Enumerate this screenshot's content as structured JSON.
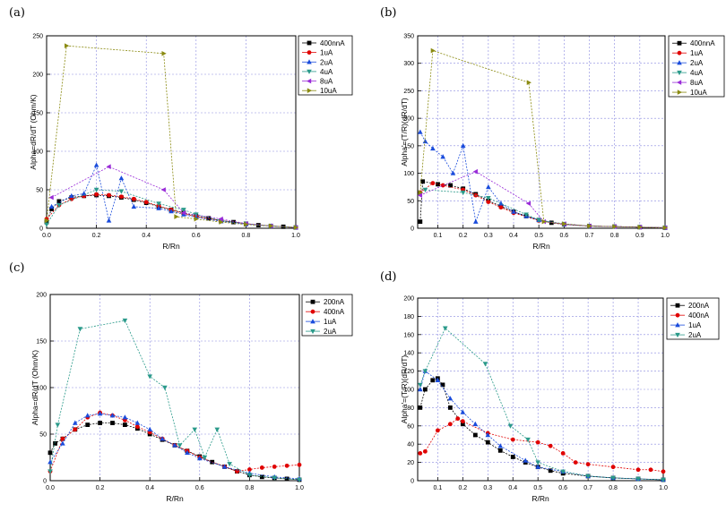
{
  "chart_data": [
    {
      "type": "scatter",
      "panel_label": "(a)",
      "xlabel": "R/Rn",
      "ylabel": "Alpha=dR/dT (Ohm/K)",
      "xlim": [
        0.0,
        1.0
      ],
      "ylim": [
        0,
        250
      ],
      "xticks": [
        0.0,
        0.2,
        0.4,
        0.6,
        0.8,
        1.0
      ],
      "xtick_labels": [
        "0.0",
        "0.2",
        "0.4",
        "0.6",
        "0.8",
        "1.0"
      ],
      "yticks": [
        0,
        50,
        100,
        150,
        200,
        250
      ],
      "ytick_labels": [
        "0",
        "50",
        "100",
        "150",
        "200",
        "250"
      ],
      "legend_position": "top-right",
      "series": [
        {
          "name": "400nnA",
          "color": "#000000",
          "marker": "square",
          "x": [
            0.0,
            0.02,
            0.05,
            0.1,
            0.15,
            0.2,
            0.25,
            0.3,
            0.35,
            0.4,
            0.45,
            0.5,
            0.55,
            0.6,
            0.65,
            0.7,
            0.75,
            0.8,
            0.85,
            0.9,
            0.95,
            1.0
          ],
          "y": [
            8,
            25,
            35,
            40,
            42,
            43,
            42,
            40,
            37,
            33,
            28,
            24,
            20,
            16,
            13,
            10,
            8,
            6,
            4,
            3,
            2,
            1
          ]
        },
        {
          "name": "1uA",
          "color": "#e00000",
          "marker": "circle",
          "x": [
            0.0,
            0.05,
            0.1,
            0.15,
            0.2,
            0.25,
            0.3,
            0.35,
            0.4,
            0.45,
            0.5,
            0.55,
            0.6,
            0.7,
            0.8,
            0.9,
            1.0
          ],
          "y": [
            12,
            30,
            38,
            42,
            44,
            43,
            41,
            38,
            34,
            29,
            24,
            19,
            15,
            10,
            6,
            3,
            1
          ]
        },
        {
          "name": "2uA",
          "color": "#1a4cdc",
          "marker": "triangle-up",
          "x": [
            0.02,
            0.1,
            0.15,
            0.2,
            0.25,
            0.3,
            0.35,
            0.45,
            0.5,
            0.55,
            0.6,
            0.7,
            0.8,
            0.9,
            1.0
          ],
          "y": [
            28,
            42,
            45,
            82,
            10,
            65,
            28,
            26,
            22,
            18,
            14,
            9,
            5,
            3,
            1
          ]
        },
        {
          "name": "4uA",
          "color": "#2a9a8a",
          "marker": "triangle-down",
          "x": [
            0.0,
            0.05,
            0.2,
            0.3,
            0.45,
            0.55,
            0.6,
            0.7,
            0.8,
            0.9,
            1.0
          ],
          "y": [
            5,
            30,
            50,
            48,
            32,
            24,
            18,
            10,
            6,
            3,
            1
          ]
        },
        {
          "name": "8uA",
          "color": "#9a2cd8",
          "marker": "triangle-left",
          "x": [
            0.02,
            0.25,
            0.47,
            0.55,
            0.7,
            0.8,
            0.9,
            1.0
          ],
          "y": [
            40,
            80,
            50,
            20,
            12,
            6,
            3,
            1
          ]
        },
        {
          "name": "10uA",
          "color": "#8a8a10",
          "marker": "triangle-right",
          "x": [
            0.0,
            0.08,
            0.47,
            0.52,
            0.6,
            0.7,
            0.8,
            0.9,
            1.0
          ],
          "y": [
            10,
            237,
            227,
            15,
            12,
            8,
            5,
            3,
            1
          ]
        }
      ]
    },
    {
      "type": "scatter",
      "panel_label": "(b)",
      "xlabel": "R/Rn",
      "ylabel": "Alpha'=(T/R)(dR/dT)",
      "xlim": [
        0.02,
        1.0
      ],
      "ylim": [
        0,
        350
      ],
      "xticks": [
        0.1,
        0.2,
        0.3,
        0.4,
        0.5,
        0.6,
        0.7,
        0.8,
        0.9,
        1.0
      ],
      "xtick_labels": [
        "0.1",
        "0.2",
        "0.3",
        "0.4",
        "0.5",
        "0.6",
        "0.7",
        "0.8",
        "0.9",
        "1.0"
      ],
      "yticks": [
        0,
        50,
        100,
        150,
        200,
        250,
        300,
        350
      ],
      "ytick_labels": [
        "0",
        "50",
        "100",
        "150",
        "200",
        "250",
        "300",
        "350"
      ],
      "legend_position": "top-right",
      "series": [
        {
          "name": "400nnA",
          "color": "#000000",
          "marker": "square",
          "x": [
            0.03,
            0.04,
            0.1,
            0.15,
            0.2,
            0.25,
            0.3,
            0.35,
            0.4,
            0.45,
            0.5,
            0.55,
            0.6,
            0.7,
            0.8,
            0.9,
            1.0
          ],
          "y": [
            12,
            85,
            80,
            78,
            72,
            62,
            50,
            40,
            30,
            22,
            15,
            10,
            7,
            4,
            3,
            2,
            1
          ]
        },
        {
          "name": "1uA",
          "color": "#e00000",
          "marker": "circle",
          "x": [
            0.03,
            0.08,
            0.12,
            0.2,
            0.25,
            0.3,
            0.35,
            0.4,
            0.5,
            0.6,
            0.7,
            0.8,
            0.9,
            1.0
          ],
          "y": [
            65,
            82,
            78,
            70,
            60,
            48,
            38,
            28,
            14,
            7,
            4,
            3,
            2,
            1
          ]
        },
        {
          "name": "2uA",
          "color": "#1a4cdc",
          "marker": "triangle-up",
          "x": [
            0.03,
            0.05,
            0.08,
            0.12,
            0.16,
            0.2,
            0.25,
            0.3,
            0.35,
            0.4,
            0.45,
            0.5,
            0.6,
            0.7,
            0.8,
            0.9,
            1.0
          ],
          "y": [
            175,
            158,
            145,
            130,
            100,
            150,
            12,
            75,
            45,
            30,
            22,
            15,
            7,
            4,
            3,
            2,
            1
          ]
        },
        {
          "name": "4uA",
          "color": "#2a9a8a",
          "marker": "triangle-down",
          "x": [
            0.05,
            0.2,
            0.3,
            0.45,
            0.5,
            0.6,
            0.7,
            0.8,
            0.9,
            1.0
          ],
          "y": [
            70,
            65,
            55,
            25,
            15,
            8,
            4,
            3,
            2,
            1
          ]
        },
        {
          "name": "8uA",
          "color": "#9a2cd8",
          "marker": "triangle-left",
          "x": [
            0.03,
            0.25,
            0.46,
            0.52,
            0.6,
            0.7,
            0.8,
            0.9,
            1.0
          ],
          "y": [
            60,
            103,
            45,
            12,
            8,
            4,
            3,
            2,
            1
          ]
        },
        {
          "name": "10uA",
          "color": "#8a8a10",
          "marker": "triangle-right",
          "x": [
            0.03,
            0.08,
            0.46,
            0.52,
            0.6,
            0.7,
            0.8,
            0.9,
            1.0
          ],
          "y": [
            65,
            323,
            265,
            12,
            8,
            4,
            3,
            2,
            1
          ]
        }
      ]
    },
    {
      "type": "scatter",
      "panel_label": "(c)",
      "xlabel": "R/Rn",
      "ylabel": "Alpha=dR/dT (Ohm/K)",
      "xlim": [
        0.0,
        1.0
      ],
      "ylim": [
        0,
        200
      ],
      "xticks": [
        0.0,
        0.2,
        0.4,
        0.6,
        0.8,
        1.0
      ],
      "xtick_labels": [
        "0.0",
        "0.2",
        "0.4",
        "0.6",
        "0.8",
        "1.0"
      ],
      "yticks": [
        0,
        50,
        100,
        150,
        200
      ],
      "ytick_labels": [
        "0",
        "50",
        "100",
        "150",
        "200"
      ],
      "legend_position": "top-right",
      "series": [
        {
          "name": "200nA",
          "color": "#000000",
          "marker": "square",
          "x": [
            0.0,
            0.02,
            0.05,
            0.1,
            0.15,
            0.2,
            0.25,
            0.3,
            0.35,
            0.4,
            0.45,
            0.5,
            0.55,
            0.6,
            0.65,
            0.7,
            0.75,
            0.8,
            0.85,
            0.9,
            0.95,
            1.0
          ],
          "y": [
            30,
            40,
            45,
            55,
            60,
            62,
            62,
            60,
            56,
            50,
            44,
            38,
            32,
            26,
            20,
            15,
            10,
            6,
            4,
            3,
            2,
            1
          ]
        },
        {
          "name": "400nA",
          "color": "#e00000",
          "marker": "circle",
          "x": [
            0.0,
            0.05,
            0.1,
            0.15,
            0.2,
            0.25,
            0.3,
            0.35,
            0.4,
            0.45,
            0.5,
            0.55,
            0.6,
            0.7,
            0.75,
            0.8,
            0.85,
            0.9,
            0.95,
            1.0
          ],
          "y": [
            10,
            45,
            55,
            68,
            73,
            70,
            65,
            58,
            52,
            45,
            38,
            32,
            25,
            15,
            10,
            12,
            14,
            15,
            16,
            17
          ]
        },
        {
          "name": "1uA",
          "color": "#1a4cdc",
          "marker": "triangle-up",
          "x": [
            0.0,
            0.05,
            0.1,
            0.15,
            0.2,
            0.25,
            0.3,
            0.35,
            0.4,
            0.45,
            0.5,
            0.55,
            0.6,
            0.7,
            0.8,
            0.9,
            1.0
          ],
          "y": [
            20,
            40,
            62,
            70,
            72,
            70,
            68,
            62,
            55,
            45,
            38,
            30,
            24,
            15,
            8,
            4,
            2
          ]
        },
        {
          "name": "2uA",
          "color": "#2a9a8a",
          "marker": "triangle-down",
          "x": [
            0.0,
            0.03,
            0.12,
            0.3,
            0.4,
            0.46,
            0.52,
            0.58,
            0.62,
            0.67,
            0.72,
            0.8,
            0.9,
            1.0
          ],
          "y": [
            10,
            60,
            163,
            172,
            112,
            100,
            38,
            55,
            25,
            55,
            18,
            6,
            3,
            1
          ]
        }
      ]
    },
    {
      "type": "scatter",
      "panel_label": "(d)",
      "xlabel": "R/Rn",
      "ylabel": "Alpha'=(T/R)(dR/dT)",
      "xlim": [
        0.02,
        1.0
      ],
      "ylim": [
        0,
        200
      ],
      "xticks": [
        0.1,
        0.2,
        0.3,
        0.4,
        0.5,
        0.6,
        0.7,
        0.8,
        0.9,
        1.0
      ],
      "xtick_labels": [
        "0.1",
        "0.2",
        "0.3",
        "0.4",
        "0.5",
        "0.6",
        "0.7",
        "0.8",
        "0.9",
        "1.0"
      ],
      "yticks": [
        0,
        20,
        40,
        60,
        80,
        100,
        120,
        140,
        160,
        180,
        200
      ],
      "ytick_labels": [
        "0",
        "20",
        "40",
        "60",
        "80",
        "100",
        "120",
        "140",
        "160",
        "180",
        "200"
      ],
      "legend_position": "top-right",
      "series": [
        {
          "name": "200nA",
          "color": "#000000",
          "marker": "square",
          "x": [
            0.03,
            0.05,
            0.08,
            0.1,
            0.12,
            0.15,
            0.2,
            0.25,
            0.3,
            0.35,
            0.4,
            0.45,
            0.5,
            0.55,
            0.6,
            0.7,
            0.8,
            0.9,
            1.0
          ],
          "y": [
            80,
            100,
            110,
            112,
            105,
            80,
            62,
            50,
            42,
            33,
            26,
            20,
            15,
            11,
            8,
            5,
            3,
            2,
            1
          ]
        },
        {
          "name": "400nA",
          "color": "#e00000",
          "marker": "circle",
          "x": [
            0.03,
            0.05,
            0.1,
            0.15,
            0.18,
            0.2,
            0.3,
            0.4,
            0.5,
            0.55,
            0.6,
            0.65,
            0.7,
            0.8,
            0.9,
            0.95,
            1.0
          ],
          "y": [
            30,
            32,
            55,
            62,
            68,
            65,
            52,
            45,
            42,
            38,
            30,
            20,
            18,
            15,
            12,
            12,
            10
          ]
        },
        {
          "name": "1uA",
          "color": "#1a4cdc",
          "marker": "triangle-up",
          "x": [
            0.03,
            0.05,
            0.1,
            0.15,
            0.2,
            0.25,
            0.3,
            0.35,
            0.45,
            0.5,
            0.6,
            0.7,
            0.8,
            0.9,
            1.0
          ],
          "y": [
            100,
            120,
            110,
            90,
            75,
            62,
            50,
            38,
            22,
            15,
            10,
            5,
            3,
            2,
            1
          ]
        },
        {
          "name": "2uA",
          "color": "#2a9a8a",
          "marker": "triangle-down",
          "x": [
            0.03,
            0.05,
            0.13,
            0.29,
            0.39,
            0.46,
            0.5,
            0.6,
            0.7,
            0.8,
            0.9,
            1.0
          ],
          "y": [
            105,
            120,
            167,
            128,
            60,
            45,
            20,
            10,
            5,
            3,
            2,
            1
          ]
        }
      ]
    }
  ]
}
